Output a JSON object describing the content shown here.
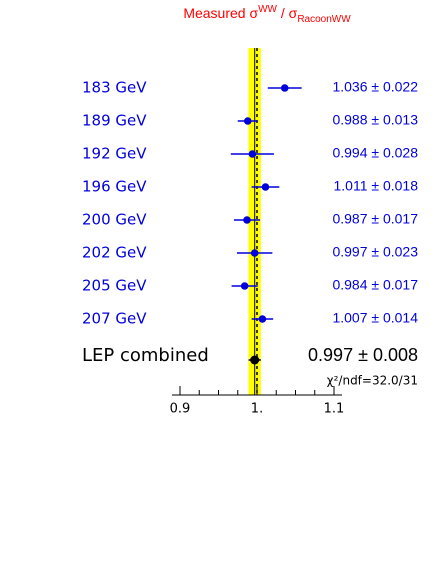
{
  "chart_data": {
    "type": "errorbar",
    "title_parts": [
      {
        "text": "Measured σ",
        "shift": "normal"
      },
      {
        "text": "WW",
        "shift": "super"
      },
      {
        "text": " / σ",
        "shift": "normal"
      },
      {
        "text": "RacoonWW",
        "shift": "sub"
      }
    ],
    "title_color": "#ff0000",
    "categories": [
      "183 GeV",
      "189 GeV",
      "192 GeV",
      "196 GeV",
      "200 GeV",
      "202 GeV",
      "205 GeV",
      "207 GeV"
    ],
    "values": [
      1.036,
      0.988,
      0.994,
      1.011,
      0.987,
      0.997,
      0.984,
      1.007
    ],
    "errors": [
      0.022,
      0.013,
      0.028,
      0.018,
      0.017,
      0.023,
      0.017,
      0.014
    ],
    "value_labels": [
      "1.036 ± 0.022",
      "0.988 ± 0.013",
      "0.994 ± 0.028",
      "1.011 ± 0.018",
      "0.987 ± 0.017",
      "0.997 ± 0.023",
      "0.984 ± 0.017",
      "1.007 ± 0.014"
    ],
    "color": "#0000dd",
    "combined": {
      "label": "LEP combined",
      "value": 0.997,
      "error": 0.008,
      "value_label": "0.997 ± 0.008",
      "color": "#000000",
      "band_color": "#ffff00"
    },
    "reference_line": 1,
    "annotation": "χ²/ndf=32.0/31",
    "xlim": [
      0.9,
      1.1
    ],
    "xticks": [
      {
        "value": 0.9,
        "label": "0.9"
      },
      {
        "value": 1,
        "label": "1."
      },
      {
        "value": 1.1,
        "label": "1.1"
      }
    ],
    "minor_xticks": [
      0.925,
      0.95,
      0.975,
      1.025,
      1.05,
      1.075
    ]
  }
}
